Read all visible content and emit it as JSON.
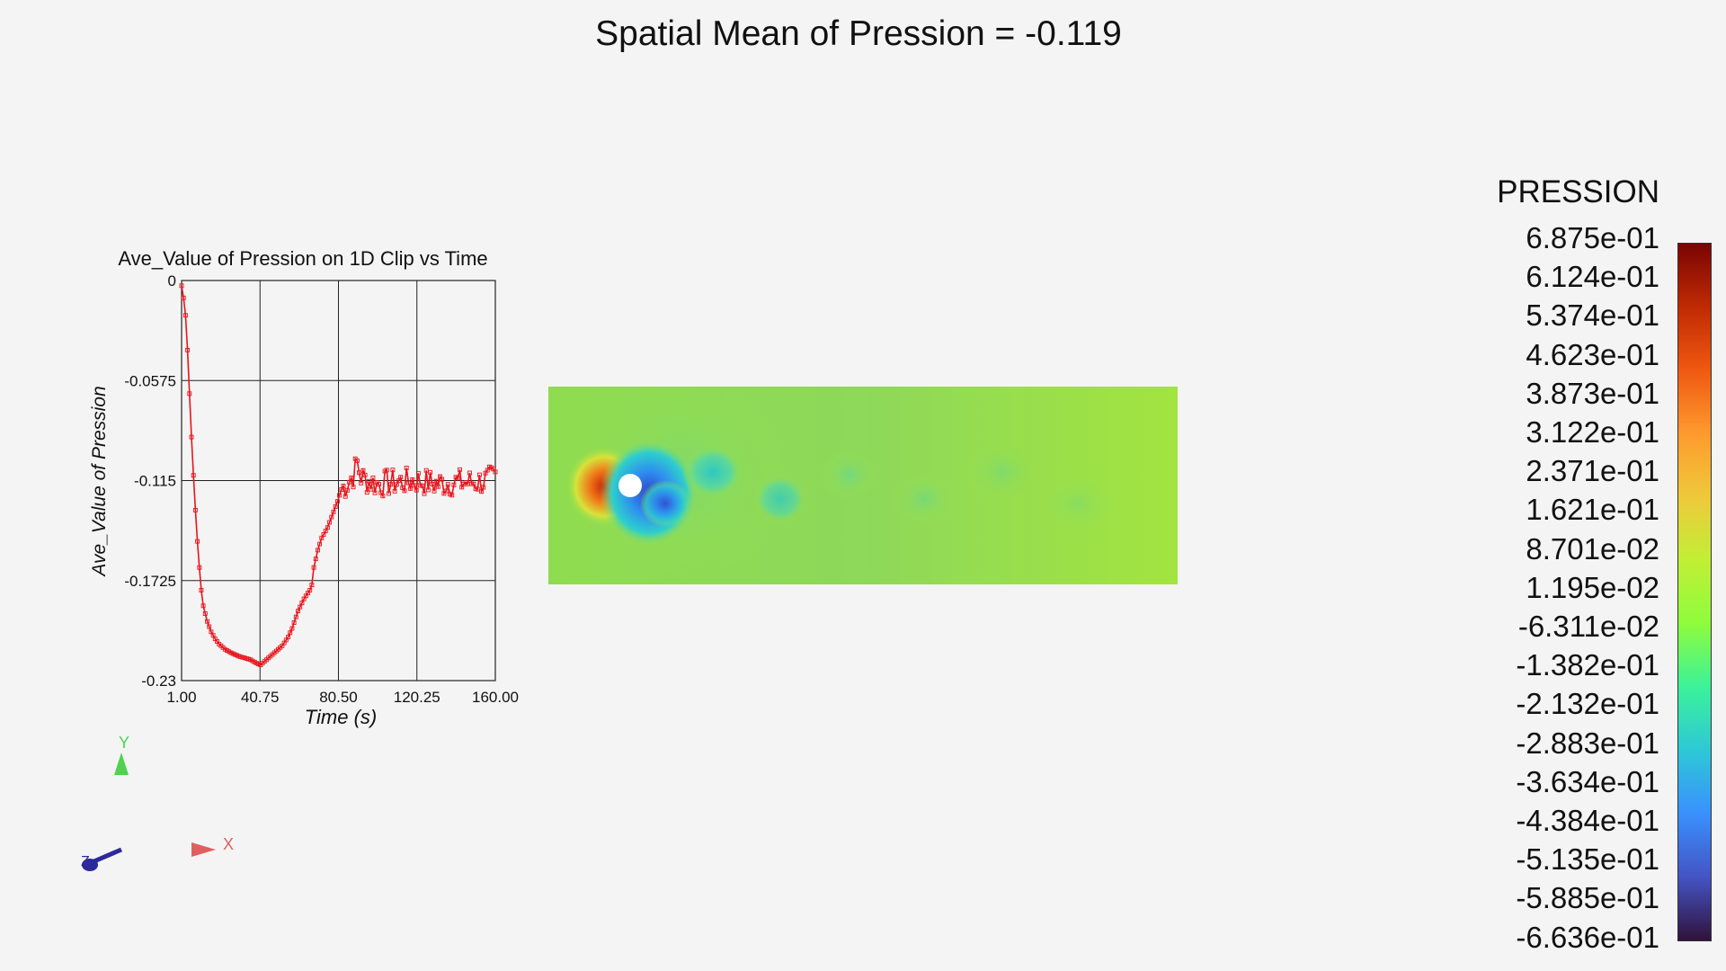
{
  "title": "Spatial Mean of Pression = -0.119",
  "chart_data": {
    "type": "line",
    "title": "Ave_Value of Pression on 1D Clip vs Time",
    "xlabel": "Time (s)",
    "ylabel": "Ave_Value of Pression",
    "xlim": [
      1.0,
      160.0
    ],
    "ylim": [
      -0.23,
      0
    ],
    "x_ticks": [
      "1.00",
      "40.75",
      "80.50",
      "120.25",
      "160.00"
    ],
    "y_ticks": [
      "0",
      "-0.0575",
      "-0.115",
      "-0.1725",
      "-0.23"
    ],
    "grid": true,
    "series_color": "#e8141c",
    "marker": "square",
    "x_step": 1.0,
    "keypoints": [
      [
        1,
        -0.003
      ],
      [
        2,
        -0.01
      ],
      [
        3,
        -0.02
      ],
      [
        4,
        -0.04
      ],
      [
        5,
        -0.065
      ],
      [
        6,
        -0.09
      ],
      [
        7,
        -0.112
      ],
      [
        8,
        -0.132
      ],
      [
        9,
        -0.15
      ],
      [
        10,
        -0.165
      ],
      [
        11,
        -0.178
      ],
      [
        12,
        -0.187
      ],
      [
        14,
        -0.196
      ],
      [
        16,
        -0.202
      ],
      [
        18,
        -0.206
      ],
      [
        20,
        -0.209
      ],
      [
        23,
        -0.212
      ],
      [
        26,
        -0.214
      ],
      [
        30,
        -0.216
      ],
      [
        33,
        -0.217
      ],
      [
        36,
        -0.218
      ],
      [
        39,
        -0.22
      ],
      [
        41,
        -0.221
      ],
      [
        43,
        -0.219
      ],
      [
        46,
        -0.216
      ],
      [
        49,
        -0.213
      ],
      [
        52,
        -0.21
      ],
      [
        55,
        -0.205
      ],
      [
        57,
        -0.2
      ],
      [
        60,
        -0.19
      ],
      [
        63,
        -0.183
      ],
      [
        66,
        -0.178
      ],
      [
        67,
        -0.175
      ],
      [
        68,
        -0.165
      ],
      [
        70,
        -0.155
      ],
      [
        72,
        -0.148
      ],
      [
        75,
        -0.142
      ],
      [
        78,
        -0.133
      ],
      [
        80,
        -0.127
      ],
      [
        82,
        -0.12
      ],
      [
        84,
        -0.118
      ],
      [
        86,
        -0.115
      ],
      [
        88,
        -0.112
      ],
      [
        90,
        -0.105
      ],
      [
        92,
        -0.113
      ],
      [
        95,
        -0.115
      ],
      [
        100,
        -0.117
      ],
      [
        110,
        -0.116
      ],
      [
        120,
        -0.115
      ],
      [
        130,
        -0.117
      ],
      [
        140,
        -0.116
      ],
      [
        150,
        -0.116
      ],
      [
        160,
        -0.114
      ]
    ],
    "noise_from_x": 82,
    "noise_amplitude": 0.008
  },
  "field": {
    "background_color": "#9be24a",
    "obstacle_color": "#ffffff"
  },
  "axes_triad": {
    "x_label": "X",
    "y_label": "Y",
    "z_label": "Z",
    "x_color": "#e06060",
    "y_color": "#4fd24f",
    "z_color": "#2a2a9a"
  },
  "legend": {
    "title": "PRESSION",
    "labels": [
      "6.875e-01",
      "6.124e-01",
      "5.374e-01",
      "4.623e-01",
      "3.873e-01",
      "3.122e-01",
      "2.371e-01",
      "1.621e-01",
      "8.701e-02",
      "1.195e-02",
      "-6.311e-02",
      "-1.382e-01",
      "-2.132e-01",
      "-2.883e-01",
      "-3.634e-01",
      "-4.384e-01",
      "-5.135e-01",
      "-5.885e-01",
      "-6.636e-01"
    ],
    "colors": [
      "#7a0403",
      "#c02a03",
      "#ef5911",
      "#fe9a2e",
      "#efc93a",
      "#c1ef36",
      "#8efc3c",
      "#3bf29a",
      "#2ec8d6",
      "#3a90fe",
      "#4454c4",
      "#30123b"
    ]
  }
}
